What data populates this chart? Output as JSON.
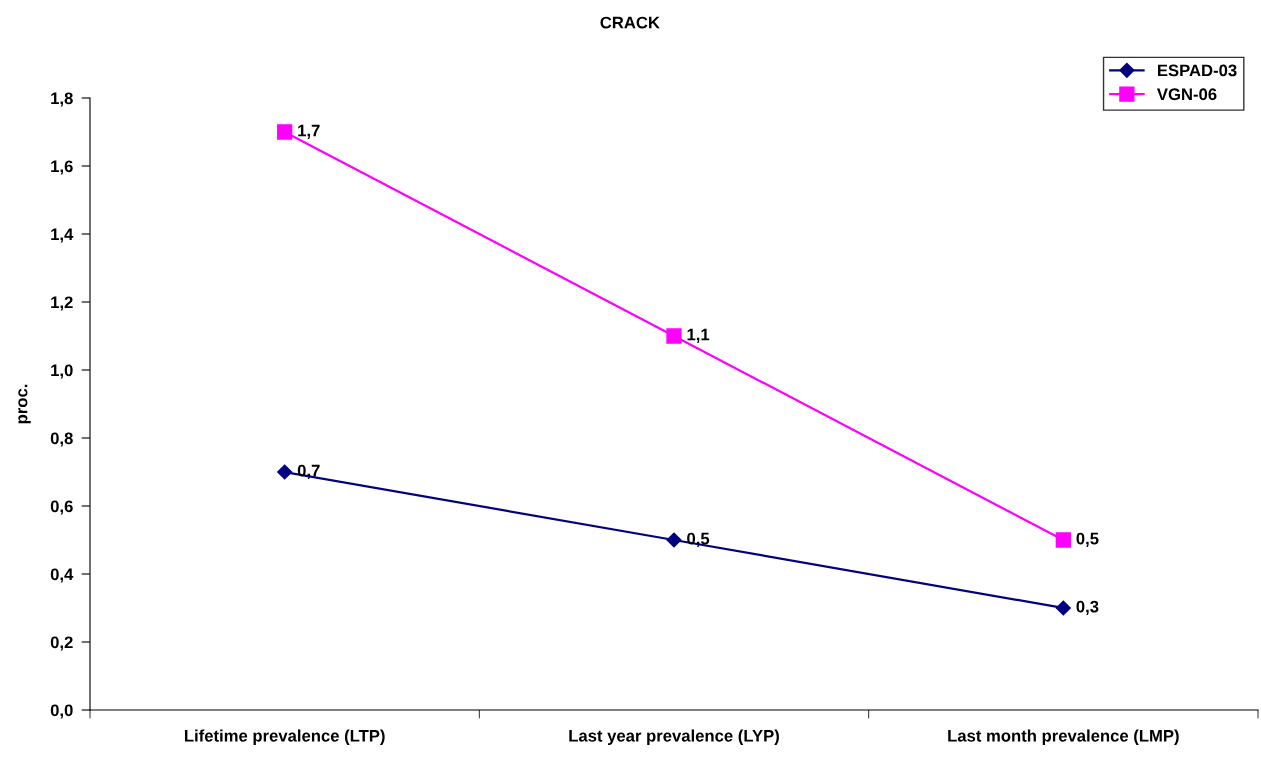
{
  "chart_data": {
    "type": "line",
    "title": "CRACK",
    "ylabel": "proc.",
    "categories": [
      "Lifetime prevalence (LTP)",
      "Last year prevalence (LYP)",
      "Last month prevalence (LMP)"
    ],
    "series": [
      {
        "name": "ESPAD-03",
        "color": "#000080",
        "values": [
          0.7,
          0.5,
          0.3
        ],
        "marker": "diamond",
        "value_labels": [
          "0,7",
          "0,5",
          "0,3"
        ]
      },
      {
        "name": "VGN-06",
        "color": "#ff00ff",
        "values": [
          1.7,
          1.1,
          0.5
        ],
        "marker": "square",
        "value_labels": [
          "1,7",
          "1,1",
          "0,5"
        ]
      }
    ],
    "ylim": [
      0,
      1.8
    ],
    "yticks": [
      {
        "value": 0,
        "label": "0,0"
      },
      {
        "value": 0.2,
        "label": "0,2"
      },
      {
        "value": 0.4,
        "label": "0,4"
      },
      {
        "value": 0.6,
        "label": "0,6"
      },
      {
        "value": 0.8,
        "label": "0,8"
      },
      {
        "value": 1.0,
        "label": "1,0"
      },
      {
        "value": 1.2,
        "label": "1,2"
      },
      {
        "value": 1.4,
        "label": "1,4"
      },
      {
        "value": 1.6,
        "label": "1,6"
      },
      {
        "value": 1.8,
        "label": "1,8"
      }
    ],
    "grid": false,
    "legend": "top right",
    "line_style": "solid"
  }
}
